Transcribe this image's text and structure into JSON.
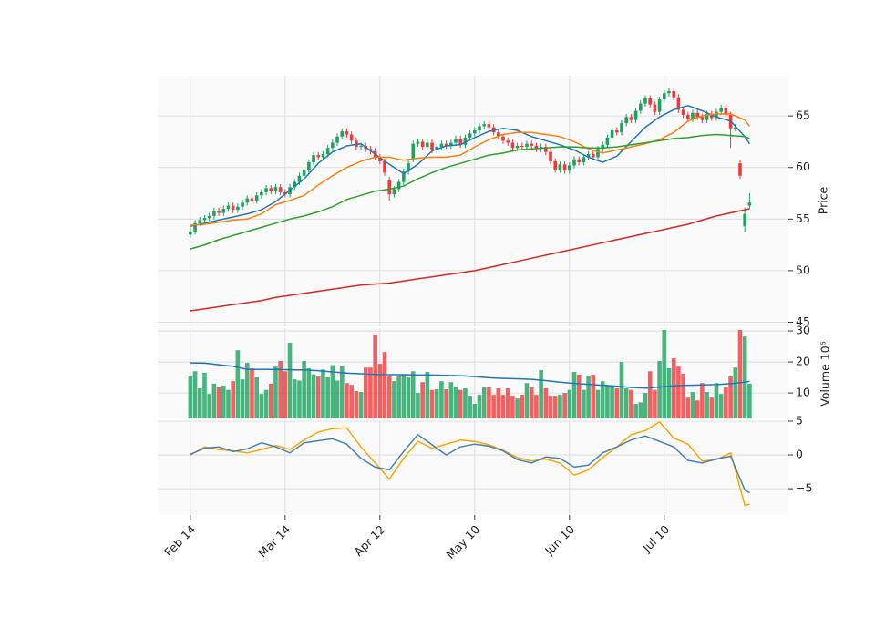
{
  "chart_data": [
    {
      "type": "candlestick",
      "ylabel": "Price",
      "categories": [
        "Feb 14",
        null,
        null,
        null,
        null,
        null,
        null,
        null,
        null,
        null,
        null,
        null,
        null,
        null,
        null,
        null,
        null,
        null,
        null,
        null,
        "Mar 14",
        null,
        null,
        null,
        null,
        null,
        null,
        null,
        null,
        null,
        null,
        null,
        null,
        null,
        null,
        null,
        null,
        null,
        null,
        null,
        "Apr 12",
        null,
        null,
        null,
        null,
        null,
        null,
        null,
        null,
        null,
        null,
        null,
        null,
        null,
        null,
        null,
        null,
        null,
        null,
        null,
        "May 10",
        null,
        null,
        null,
        null,
        null,
        null,
        null,
        null,
        null,
        null,
        null,
        null,
        null,
        null,
        null,
        null,
        null,
        null,
        null,
        "Jun 10",
        null,
        null,
        null,
        null,
        null,
        null,
        null,
        null,
        null,
        null,
        null,
        null,
        null,
        null,
        null,
        null,
        null,
        null,
        null,
        "Jul 10",
        null,
        null,
        null,
        null,
        null,
        null,
        null,
        null,
        null,
        null,
        null,
        null,
        null,
        null,
        null,
        null,
        null,
        null
      ],
      "open": [
        53.5,
        53.8,
        54.6,
        54.9,
        55.1,
        55.3,
        55.8,
        55.6,
        56.0,
        56.3,
        55.9,
        56.2,
        56.6,
        57.0,
        56.8,
        57.3,
        57.6,
        58.0,
        57.7,
        58.1,
        57.6,
        57.4,
        58.1,
        58.6,
        59.2,
        59.8,
        60.5,
        61.2,
        61.0,
        61.3,
        61.9,
        62.4,
        63.0,
        63.5,
        63.2,
        62.6,
        62.0,
        62.1,
        61.8,
        61.6,
        61.0,
        60.6,
        58.8,
        57.4,
        57.9,
        58.6,
        59.6,
        60.8,
        62.3,
        62.5,
        62.0,
        62.4,
        61.7,
        62.0,
        62.3,
        62.1,
        62.4,
        62.8,
        62.2,
        62.9,
        63.3,
        63.6,
        64.0,
        64.2,
        63.9,
        63.4,
        63.0,
        62.6,
        62.4,
        61.9,
        62.1,
        62.0,
        62.3,
        62.1,
        61.8,
        62.0,
        61.5,
        60.6,
        59.8,
        60.3,
        59.7,
        60.2,
        60.8,
        60.5,
        61.0,
        61.3,
        61.0,
        61.8,
        62.2,
        62.9,
        63.6,
        63.4,
        64.3,
        64.9,
        64.6,
        65.5,
        66.2,
        66.7,
        66.1,
        65.4,
        66.6,
        67.2,
        67.4,
        66.8,
        65.6,
        65.1,
        64.7,
        65.3,
        64.9,
        64.6,
        65.2,
        64.8,
        65.4,
        65.8,
        65.1,
        63.8,
        60.4,
        54.3,
        56.3
      ],
      "high": [
        54.1,
        54.9,
        55.2,
        55.4,
        55.6,
        56.1,
        56.1,
        56.3,
        56.6,
        56.6,
        56.5,
        56.9,
        57.3,
        57.3,
        57.6,
        57.9,
        58.3,
        58.3,
        58.4,
        58.4,
        57.9,
        58.4,
        58.9,
        59.5,
        60.1,
        60.8,
        61.5,
        61.5,
        61.6,
        62.2,
        62.7,
        63.3,
        63.8,
        63.8,
        63.5,
        62.9,
        62.4,
        62.4,
        62.1,
        61.9,
        61.3,
        60.9,
        59.1,
        58.2,
        58.9,
        59.9,
        60.7,
        62.6,
        62.8,
        62.8,
        62.7,
        62.7,
        62.3,
        62.6,
        62.6,
        62.7,
        63.1,
        63.1,
        63.2,
        63.6,
        63.9,
        64.3,
        64.5,
        64.5,
        64.2,
        63.7,
        63.3,
        62.9,
        62.7,
        62.4,
        62.4,
        62.6,
        62.6,
        62.4,
        62.3,
        62.3,
        61.8,
        60.9,
        60.6,
        60.6,
        60.5,
        61.1,
        61.1,
        61.3,
        61.6,
        61.6,
        62.1,
        62.5,
        63.2,
        63.9,
        63.9,
        64.6,
        65.2,
        65.2,
        65.8,
        66.5,
        67.0,
        67.0,
        66.4,
        66.9,
        67.5,
        67.7,
        67.7,
        67.1,
        65.9,
        65.4,
        65.6,
        65.6,
        65.2,
        65.5,
        65.5,
        65.7,
        66.1,
        66.1,
        65.4,
        64.2,
        60.7,
        56.1,
        57.5
      ],
      "low": [
        53.2,
        53.5,
        54.3,
        54.6,
        54.8,
        55.0,
        55.3,
        55.3,
        55.7,
        55.6,
        55.6,
        55.9,
        56.3,
        56.5,
        56.5,
        57.0,
        57.3,
        57.4,
        57.4,
        57.3,
        57.1,
        57.1,
        57.8,
        58.3,
        58.9,
        59.5,
        60.2,
        60.7,
        60.7,
        61.0,
        61.6,
        62.1,
        62.7,
        62.9,
        62.3,
        61.7,
        61.7,
        61.5,
        61.3,
        60.7,
        60.3,
        59.2,
        56.8,
        57.1,
        57.6,
        58.3,
        59.3,
        60.5,
        62.0,
        61.7,
        61.7,
        61.4,
        61.4,
        61.7,
        61.8,
        61.8,
        62.1,
        61.9,
        61.9,
        62.6,
        63.0,
        63.3,
        63.7,
        63.6,
        63.1,
        62.7,
        62.3,
        62.1,
        61.6,
        61.6,
        61.7,
        61.7,
        61.8,
        61.5,
        61.5,
        61.2,
        60.3,
        59.5,
        59.5,
        59.4,
        59.4,
        59.9,
        60.2,
        60.2,
        60.7,
        60.7,
        60.7,
        61.5,
        61.9,
        62.6,
        63.1,
        63.1,
        64.0,
        64.3,
        64.3,
        65.2,
        65.9,
        65.8,
        65.1,
        65.1,
        66.3,
        66.9,
        66.5,
        65.3,
        64.8,
        64.4,
        64.4,
        64.6,
        64.3,
        64.3,
        64.5,
        64.5,
        65.1,
        64.8,
        61.9,
        63.5,
        58.9,
        53.7,
        56.0
      ],
      "close": [
        53.8,
        54.6,
        54.9,
        55.1,
        55.3,
        55.8,
        55.6,
        56.0,
        56.3,
        55.9,
        56.2,
        56.6,
        57.0,
        56.8,
        57.3,
        57.6,
        58.0,
        57.7,
        58.1,
        57.6,
        57.4,
        58.1,
        58.6,
        59.2,
        59.8,
        60.5,
        61.2,
        61.0,
        61.3,
        61.9,
        62.4,
        63.0,
        63.5,
        63.2,
        62.6,
        62.0,
        62.1,
        61.8,
        61.6,
        61.0,
        60.6,
        59.5,
        57.4,
        57.9,
        58.6,
        59.6,
        60.4,
        62.3,
        62.5,
        62.0,
        62.4,
        61.7,
        62.0,
        62.3,
        62.1,
        62.4,
        62.8,
        62.2,
        62.9,
        63.3,
        63.6,
        64.0,
        64.2,
        63.9,
        63.4,
        63.0,
        62.6,
        62.4,
        61.9,
        62.1,
        62.0,
        62.3,
        62.1,
        61.8,
        62.0,
        61.5,
        60.6,
        59.8,
        60.3,
        59.7,
        60.2,
        60.8,
        60.5,
        61.0,
        61.3,
        61.0,
        61.8,
        62.2,
        62.9,
        63.6,
        63.4,
        64.3,
        64.9,
        64.6,
        65.5,
        66.2,
        66.7,
        66.1,
        65.4,
        66.6,
        67.2,
        67.4,
        66.8,
        65.6,
        65.1,
        64.7,
        65.3,
        64.9,
        64.6,
        65.2,
        64.8,
        65.4,
        65.8,
        65.1,
        63.8,
        63.9,
        59.2,
        55.5,
        56.6
      ],
      "up_color": "#1ca35f",
      "down_color": "#f0393b",
      "lines": {
        "x": [
          0,
          3,
          6,
          9,
          12,
          15,
          18,
          21,
          24,
          27,
          30,
          33,
          36,
          39,
          42,
          45,
          48,
          51,
          54,
          57,
          60,
          63,
          66,
          69,
          72,
          75,
          78,
          81,
          84,
          87,
          90,
          93,
          96,
          99,
          102,
          105,
          108,
          111,
          114,
          117,
          118
        ],
        "series": [
          {
            "color": "#1f77b4",
            "values": [
              54.3,
              54.6,
              54.9,
              55.2,
              55.5,
              55.9,
              56.7,
              57.8,
              58.9,
              60.4,
              61.5,
              62.1,
              62.3,
              61.3,
              60.3,
              59.4,
              60.3,
              61.6,
              62.1,
              62.2,
              62.9,
              63.5,
              63.8,
              63.6,
              63.0,
              62.6,
              62.2,
              61.7,
              61.0,
              60.5,
              61.1,
              62.5,
              63.9,
              64.9,
              65.6,
              66.0,
              65.5,
              64.9,
              64.5,
              63.0,
              62.3
            ]
          },
          {
            "color": "#ff7f0e",
            "values": [
              54.4,
              54.5,
              54.7,
              54.9,
              55.0,
              55.5,
              56.4,
              56.8,
              57.3,
              58.3,
              59.2,
              60.0,
              60.6,
              61.0,
              61.0,
              60.7,
              60.9,
              61.0,
              61.0,
              61.2,
              62.0,
              62.7,
              63.2,
              63.4,
              63.4,
              63.2,
              63.0,
              62.5,
              61.8,
              61.4,
              61.7,
              62.0,
              62.3,
              62.7,
              63.4,
              64.5,
              65.0,
              65.2,
              65.2,
              64.6,
              64.0
            ]
          },
          {
            "color": "#2ca02c",
            "values": [
              52.1,
              52.5,
              53.0,
              53.4,
              53.8,
              54.2,
              54.6,
              55.0,
              55.3,
              55.7,
              56.2,
              56.9,
              57.3,
              57.7,
              57.9,
              58.2,
              58.9,
              59.5,
              60.0,
              60.4,
              60.8,
              61.2,
              61.4,
              61.7,
              61.8,
              61.9,
              62.0,
              62.0,
              61.9,
              61.9,
              62.0,
              62.2,
              62.4,
              62.6,
              62.8,
              62.9,
              63.1,
              63.2,
              63.1,
              63.0,
              62.8
            ]
          },
          {
            "color": "#d62728",
            "values": [
              46.1,
              46.3,
              46.5,
              46.7,
              46.9,
              47.1,
              47.4,
              47.6,
              47.8,
              48.0,
              48.2,
              48.4,
              48.6,
              48.7,
              48.8,
              49.0,
              49.2,
              49.4,
              49.6,
              49.8,
              50.0,
              50.3,
              50.6,
              50.9,
              51.2,
              51.5,
              51.8,
              52.1,
              52.4,
              52.7,
              53.0,
              53.3,
              53.6,
              53.9,
              54.2,
              54.5,
              54.9,
              55.3,
              55.6,
              55.9,
              56.0
            ]
          }
        ]
      },
      "xlim": [
        -6.9,
        126.2
      ],
      "ylim": [
        44.6,
        68.9
      ],
      "yticks": [
        45,
        50,
        55,
        60,
        65
      ],
      "grid": true
    },
    {
      "type": "bar",
      "ylabel": "Volume  10⁶",
      "values": [
        15.3,
        17,
        11.5,
        16.5,
        9.7,
        13,
        11.8,
        12.4,
        11,
        13.8,
        23.8,
        14.4,
        19.7,
        18,
        15,
        9.7,
        11,
        13,
        18.5,
        20.3,
        17,
        26.2,
        14.4,
        14,
        20.3,
        18,
        16,
        15.3,
        17.6,
        15,
        19,
        14,
        18.8,
        13.2,
        12.6,
        10.6,
        10.3,
        18.2,
        18.2,
        28.8,
        19.4,
        23.2,
        15.3,
        13.8,
        15.3,
        15.9,
        15,
        17,
        10,
        13.5,
        16.8,
        11,
        11.2,
        13.8,
        11.2,
        13.5,
        11.8,
        11,
        11.5,
        9.1,
        6.5,
        9.4,
        11.8,
        11.8,
        9.4,
        11.5,
        9.4,
        11.5,
        9.1,
        8.2,
        9.4,
        13.2,
        11.8,
        9.4,
        17.4,
        11.5,
        9.1,
        9.1,
        9.4,
        10,
        11,
        16.8,
        15.9,
        11,
        15.6,
        15.9,
        11,
        13.8,
        12.6,
        12,
        11.5,
        20,
        11.5,
        11,
        6.5,
        7,
        10,
        17,
        11,
        20.3,
        30.3,
        18,
        21.2,
        18.5,
        16.2,
        8.5,
        10.3,
        7.6,
        13.2,
        10.3,
        8.5,
        13.2,
        9.7,
        12,
        15.3,
        18.2,
        30.3,
        28.2,
        13
      ],
      "lines": {
        "x": [
          0,
          3,
          6,
          9,
          12,
          15,
          18,
          21,
          24,
          27,
          30,
          33,
          36,
          39,
          42,
          45,
          48,
          51,
          54,
          57,
          60,
          63,
          66,
          69,
          72,
          75,
          78,
          81,
          84,
          87,
          90,
          93,
          96,
          99,
          102,
          105,
          108,
          111,
          114,
          117,
          118
        ],
        "series": [
          {
            "color": "#1f77b4",
            "values": [
              19.7,
              19.6,
              19.1,
              18.6,
              17.6,
              17.6,
              17.6,
              17.5,
              17.4,
              17.2,
              16.8,
              16.4,
              16.2,
              16.0,
              15.9,
              15.9,
              15.8,
              15.8,
              15.7,
              15.6,
              15.3,
              14.9,
              14.7,
              14.6,
              14.4,
              14.0,
              13.5,
              13.1,
              12.8,
              12.5,
              12.2,
              11.8,
              11.6,
              11.9,
              12.3,
              12.5,
              12.6,
              12.7,
              13.0,
              13.5,
              13.8
            ]
          }
        ]
      },
      "ylim": [
        1.8,
        30.9
      ],
      "yticks": [
        10,
        20,
        30
      ],
      "grid": true
    },
    {
      "type": "line",
      "lines": {
        "x": [
          0,
          3,
          6,
          9,
          12,
          15,
          18,
          21,
          24,
          27,
          30,
          33,
          36,
          39,
          42,
          45,
          48,
          51,
          54,
          57,
          60,
          63,
          66,
          69,
          72,
          75,
          78,
          81,
          84,
          87,
          90,
          93,
          96,
          99,
          102,
          105,
          108,
          111,
          114,
          117,
          118
        ],
        "series": [
          {
            "color": "#ffa500",
            "values": [
              0,
              1.2,
              0.8,
              0.6,
              0.3,
              0.8,
              1.4,
              0.8,
              2.2,
              3.4,
              3.9,
              4.0,
              1.2,
              -1.2,
              -3.6,
              -0.5,
              2.0,
              1.0,
              1.6,
              2.2,
              2.0,
              1.5,
              0.7,
              -0.4,
              -0.9,
              -0.6,
              -1.2,
              -3.0,
              -2.2,
              -0.4,
              1.2,
              3.0,
              3.6,
              4.9,
              2.5,
              1.6,
              -0.9,
              -0.7,
              0.3,
              -7.5,
              -7.3
            ]
          },
          {
            "color": "#4682b4",
            "values": [
              0.1,
              1.0,
              1.2,
              0.5,
              0.9,
              1.8,
              1.2,
              0.3,
              1.8,
              2.1,
              2.4,
              1.6,
              -0.5,
              -1.8,
              -2.2,
              0.5,
              3.0,
              1.5,
              0,
              1.2,
              1.6,
              1.3,
              0.6,
              -0.7,
              -1.2,
              -0.3,
              -0.5,
              -1.8,
              -1.5,
              0.3,
              1.2,
              2.2,
              2.8,
              2.0,
              1.2,
              -0.8,
              -1.2,
              -0.6,
              -0.2,
              -5.2,
              -5.6
            ]
          }
        ]
      },
      "ylim": [
        -8.9,
        5.0
      ],
      "yticks": [
        {
          "value": -5,
          "label": "−5"
        },
        0,
        5
      ],
      "grid": true
    }
  ]
}
